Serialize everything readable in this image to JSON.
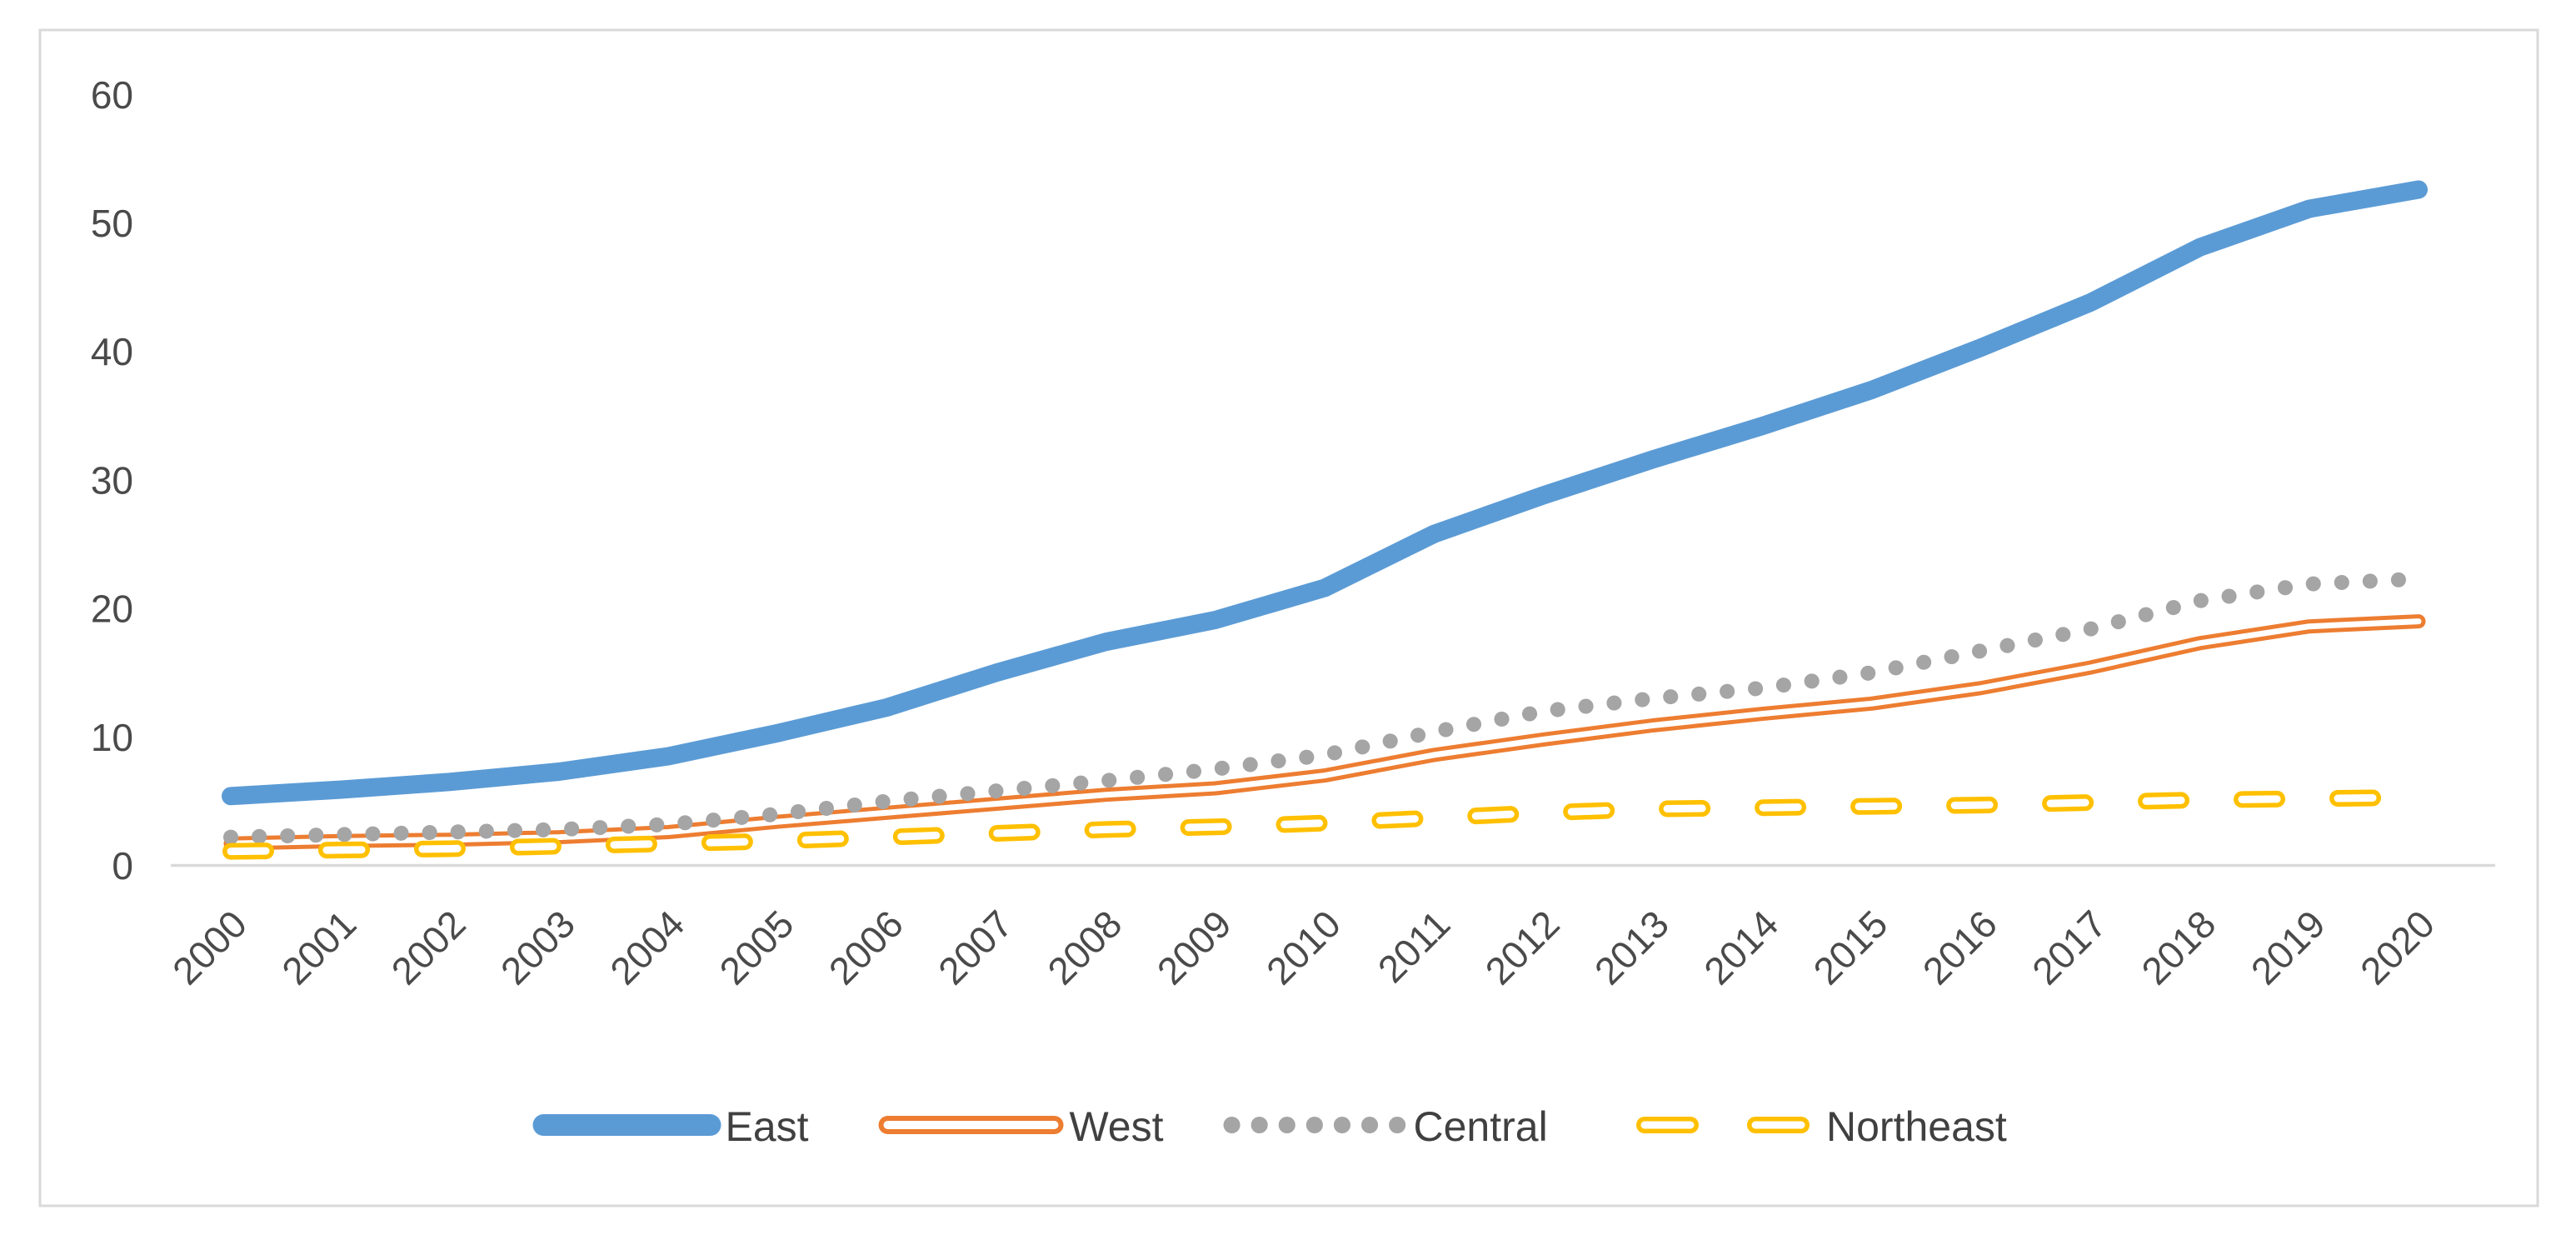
{
  "chart": {
    "background_color": "#FFFFFF",
    "frame_border_color": "#D9D9D9",
    "axis_line_color": "#D9D9D9",
    "tick_label_color": "#4A4A4A",
    "legend_label_color": "#404040"
  },
  "chart_data": {
    "type": "line",
    "title": "",
    "xlabel": "",
    "ylabel": "",
    "ylim": [
      0,
      60
    ],
    "ytick_step": 10,
    "y_ticks": [
      "0",
      "10",
      "20",
      "30",
      "40",
      "50",
      "60"
    ],
    "grid": false,
    "legend_position": "bottom-center",
    "categories": [
      "2000",
      "2001",
      "2002",
      "2003",
      "2004",
      "2005",
      "2006",
      "2007",
      "2008",
      "2009",
      "2010",
      "2011",
      "2012",
      "2013",
      "2014",
      "2015",
      "2016",
      "2017",
      "2018",
      "2019",
      "2020"
    ],
    "series": [
      {
        "name": "East",
        "color": "#5B9BD5",
        "line_style": "solid-thick",
        "values": [
          5.3,
          5.8,
          6.4,
          7.2,
          8.4,
          10.2,
          12.2,
          14.9,
          17.3,
          19.0,
          21.5,
          25.7,
          28.7,
          31.5,
          34.1,
          36.9,
          40.2,
          43.7,
          48.0,
          51.0,
          52.5
        ]
      },
      {
        "name": "West",
        "color": "#ED7D31",
        "line_style": "double-line",
        "values": [
          1.6,
          1.8,
          1.9,
          2.1,
          2.5,
          3.3,
          4.0,
          4.7,
          5.4,
          5.9,
          6.9,
          8.5,
          9.7,
          10.8,
          11.7,
          12.5,
          13.7,
          15.3,
          17.2,
          18.5,
          18.9
        ]
      },
      {
        "name": "Central",
        "color": "#A5A5A5",
        "line_style": "dotted",
        "values": [
          2.1,
          2.3,
          2.5,
          2.7,
          3.1,
          3.9,
          4.9,
          5.7,
          6.5,
          7.4,
          8.5,
          10.3,
          11.9,
          12.9,
          13.7,
          14.9,
          16.6,
          18.3,
          20.5,
          21.8,
          22.2
        ]
      },
      {
        "name": "Northeast",
        "color": "#FFC000",
        "line_style": "hollow-dash",
        "values": [
          1.0,
          1.1,
          1.2,
          1.4,
          1.6,
          1.8,
          2.1,
          2.4,
          2.7,
          2.9,
          3.2,
          3.6,
          4.0,
          4.3,
          4.4,
          4.5,
          4.6,
          4.8,
          5.0,
          5.1,
          5.2
        ]
      }
    ]
  }
}
